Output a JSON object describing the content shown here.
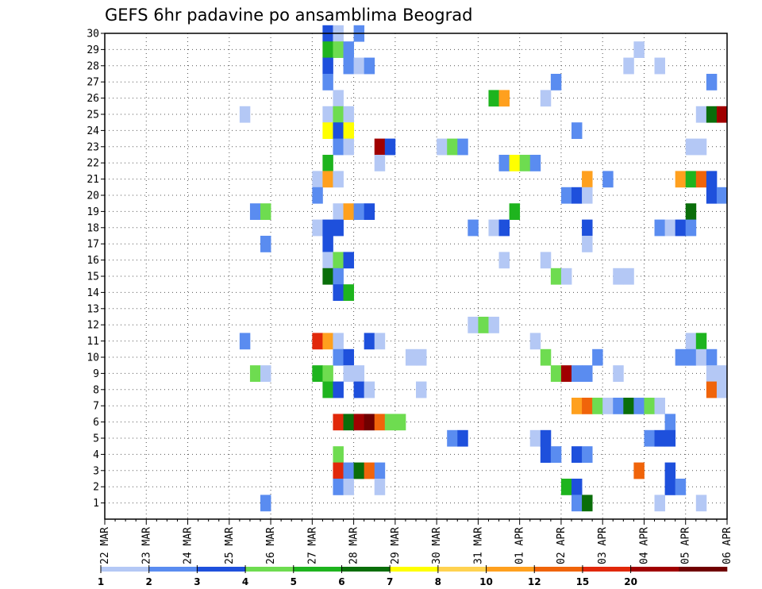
{
  "chart_data": {
    "type": "heatmap",
    "title": "GEFS 6hr padavine po ansamblima Beograd",
    "x_labels": [
      "22 MAR",
      "23 MAR",
      "24 MAR",
      "25 MAR",
      "26 MAR",
      "27 MAR",
      "28 MAR",
      "29 MAR",
      "30 MAR",
      "31 MAR",
      "01 APR",
      "02 APR",
      "03 APR",
      "04 APR",
      "05 APR",
      "06 APR"
    ],
    "x_range": [
      0,
      60
    ],
    "x_unit": "6-hour steps from 22 MAR 00Z",
    "y_labels": [
      1,
      2,
      3,
      4,
      5,
      6,
      7,
      8,
      9,
      10,
      11,
      12,
      13,
      14,
      15,
      16,
      17,
      18,
      19,
      20,
      21,
      22,
      23,
      24,
      25,
      26,
      27,
      28,
      29,
      30
    ],
    "y_range": [
      0,
      30
    ],
    "grid": true,
    "legend": {
      "placement": "bottom",
      "labels": [
        "1",
        "2",
        "3",
        "4",
        "5",
        "6",
        "7",
        "8",
        "10",
        "12",
        "15",
        "20"
      ],
      "colors": [
        "#b4c8f5",
        "#5a8cf0",
        "#1e50dc",
        "#6edc50",
        "#1eb41e",
        "#0a6e0a",
        "#ffff00",
        "#ffd250",
        "#ffa01e",
        "#f0640a",
        "#e1280a",
        "#a00000",
        "#700000"
      ]
    },
    "cells": [
      {
        "x": 22,
        "y": 30,
        "c": 2
      },
      {
        "x": 23,
        "y": 30,
        "c": 0
      },
      {
        "x": 25,
        "y": 30,
        "c": 1
      },
      {
        "x": 22,
        "y": 29,
        "c": 4
      },
      {
        "x": 23,
        "y": 29,
        "c": 3
      },
      {
        "x": 24,
        "y": 29,
        "c": 1
      },
      {
        "x": 52,
        "y": 29,
        "c": 0
      },
      {
        "x": 22,
        "y": 28,
        "c": 2
      },
      {
        "x": 24,
        "y": 28,
        "c": 1
      },
      {
        "x": 25,
        "y": 28,
        "c": 0
      },
      {
        "x": 26,
        "y": 28,
        "c": 1
      },
      {
        "x": 51,
        "y": 28,
        "c": 0
      },
      {
        "x": 54,
        "y": 28,
        "c": 0
      },
      {
        "x": 22,
        "y": 27,
        "c": 1
      },
      {
        "x": 44,
        "y": 27,
        "c": 1
      },
      {
        "x": 59,
        "y": 27,
        "c": 1
      },
      {
        "x": 23,
        "y": 26,
        "c": 0
      },
      {
        "x": 38,
        "y": 26,
        "c": 4
      },
      {
        "x": 39,
        "y": 26,
        "c": 8
      },
      {
        "x": 43,
        "y": 26,
        "c": 0
      },
      {
        "x": 14,
        "y": 25,
        "c": 0
      },
      {
        "x": 22,
        "y": 25,
        "c": 0
      },
      {
        "x": 23,
        "y": 25,
        "c": 3
      },
      {
        "x": 24,
        "y": 25,
        "c": 0
      },
      {
        "x": 58,
        "y": 25,
        "c": 0
      },
      {
        "x": 59,
        "y": 25,
        "c": 5
      },
      {
        "x": 60,
        "y": 25,
        "c": 11
      },
      {
        "x": 22,
        "y": 24,
        "c": 6
      },
      {
        "x": 23,
        "y": 24,
        "c": 2
      },
      {
        "x": 24,
        "y": 24,
        "c": 6
      },
      {
        "x": 46,
        "y": 24,
        "c": 1
      },
      {
        "x": 23,
        "y": 23,
        "c": 1
      },
      {
        "x": 24,
        "y": 23,
        "c": 0
      },
      {
        "x": 27,
        "y": 23,
        "c": 11
      },
      {
        "x": 28,
        "y": 23,
        "c": 2
      },
      {
        "x": 33,
        "y": 23,
        "c": 0
      },
      {
        "x": 34,
        "y": 23,
        "c": 3
      },
      {
        "x": 35,
        "y": 23,
        "c": 1
      },
      {
        "x": 57,
        "y": 23,
        "c": 0
      },
      {
        "x": 58,
        "y": 23,
        "c": 0
      },
      {
        "x": 22,
        "y": 22,
        "c": 4
      },
      {
        "x": 27,
        "y": 22,
        "c": 0
      },
      {
        "x": 39,
        "y": 22,
        "c": 1
      },
      {
        "x": 40,
        "y": 22,
        "c": 6
      },
      {
        "x": 41,
        "y": 22,
        "c": 3
      },
      {
        "x": 42,
        "y": 22,
        "c": 1
      },
      {
        "x": 21,
        "y": 21,
        "c": 0
      },
      {
        "x": 22,
        "y": 21,
        "c": 8
      },
      {
        "x": 23,
        "y": 21,
        "c": 0
      },
      {
        "x": 47,
        "y": 21,
        "c": 8
      },
      {
        "x": 49,
        "y": 21,
        "c": 1
      },
      {
        "x": 56,
        "y": 21,
        "c": 8
      },
      {
        "x": 57,
        "y": 21,
        "c": 4
      },
      {
        "x": 58,
        "y": 21,
        "c": 9
      },
      {
        "x": 59,
        "y": 21,
        "c": 2
      },
      {
        "x": 21,
        "y": 20,
        "c": 1
      },
      {
        "x": 45,
        "y": 20,
        "c": 1
      },
      {
        "x": 46,
        "y": 20,
        "c": 2
      },
      {
        "x": 47,
        "y": 20,
        "c": 0
      },
      {
        "x": 59,
        "y": 20,
        "c": 2
      },
      {
        "x": 60,
        "y": 20,
        "c": 1
      },
      {
        "x": 15,
        "y": 19,
        "c": 1
      },
      {
        "x": 16,
        "y": 19,
        "c": 3
      },
      {
        "x": 23,
        "y": 19,
        "c": 0
      },
      {
        "x": 24,
        "y": 19,
        "c": 8
      },
      {
        "x": 25,
        "y": 19,
        "c": 1
      },
      {
        "x": 26,
        "y": 19,
        "c": 2
      },
      {
        "x": 40,
        "y": 19,
        "c": 4
      },
      {
        "x": 57,
        "y": 19,
        "c": 5
      },
      {
        "x": 21,
        "y": 18,
        "c": 0
      },
      {
        "x": 22,
        "y": 18,
        "c": 2
      },
      {
        "x": 23,
        "y": 18,
        "c": 2
      },
      {
        "x": 36,
        "y": 18,
        "c": 1
      },
      {
        "x": 38,
        "y": 18,
        "c": 0
      },
      {
        "x": 39,
        "y": 18,
        "c": 2
      },
      {
        "x": 47,
        "y": 18,
        "c": 2
      },
      {
        "x": 54,
        "y": 18,
        "c": 1
      },
      {
        "x": 55,
        "y": 18,
        "c": 0
      },
      {
        "x": 56,
        "y": 18,
        "c": 2
      },
      {
        "x": 57,
        "y": 18,
        "c": 1
      },
      {
        "x": 22,
        "y": 17,
        "c": 2
      },
      {
        "x": 16,
        "y": 17,
        "c": 1
      },
      {
        "x": 47,
        "y": 17,
        "c": 0
      },
      {
        "x": 22,
        "y": 16,
        "c": 0
      },
      {
        "x": 23,
        "y": 16,
        "c": 3
      },
      {
        "x": 24,
        "y": 16,
        "c": 2
      },
      {
        "x": 39,
        "y": 16,
        "c": 0
      },
      {
        "x": 43,
        "y": 16,
        "c": 0
      },
      {
        "x": 22,
        "y": 15,
        "c": 5
      },
      {
        "x": 23,
        "y": 15,
        "c": 1
      },
      {
        "x": 44,
        "y": 15,
        "c": 3
      },
      {
        "x": 45,
        "y": 15,
        "c": 0
      },
      {
        "x": 50,
        "y": 15,
        "c": 0
      },
      {
        "x": 51,
        "y": 15,
        "c": 0
      },
      {
        "x": 23,
        "y": 14,
        "c": 2
      },
      {
        "x": 24,
        "y": 14,
        "c": 4
      },
      {
        "x": 36,
        "y": 12,
        "c": 0
      },
      {
        "x": 37,
        "y": 12,
        "c": 3
      },
      {
        "x": 38,
        "y": 12,
        "c": 0
      },
      {
        "x": 14,
        "y": 11,
        "c": 1
      },
      {
        "x": 21,
        "y": 11,
        "c": 10
      },
      {
        "x": 22,
        "y": 11,
        "c": 8
      },
      {
        "x": 23,
        "y": 11,
        "c": 0
      },
      {
        "x": 26,
        "y": 11,
        "c": 2
      },
      {
        "x": 27,
        "y": 11,
        "c": 0
      },
      {
        "x": 42,
        "y": 11,
        "c": 0
      },
      {
        "x": 57,
        "y": 11,
        "c": 0
      },
      {
        "x": 58,
        "y": 11,
        "c": 4
      },
      {
        "x": 23,
        "y": 10,
        "c": 1
      },
      {
        "x": 24,
        "y": 10,
        "c": 2
      },
      {
        "x": 30,
        "y": 10,
        "c": 0
      },
      {
        "x": 31,
        "y": 10,
        "c": 0
      },
      {
        "x": 43,
        "y": 10,
        "c": 3
      },
      {
        "x": 48,
        "y": 10,
        "c": 1
      },
      {
        "x": 56,
        "y": 10,
        "c": 1
      },
      {
        "x": 57,
        "y": 10,
        "c": 1
      },
      {
        "x": 58,
        "y": 10,
        "c": 0
      },
      {
        "x": 59,
        "y": 10,
        "c": 1
      },
      {
        "x": 15,
        "y": 9,
        "c": 3
      },
      {
        "x": 16,
        "y": 9,
        "c": 0
      },
      {
        "x": 21,
        "y": 9,
        "c": 4
      },
      {
        "x": 22,
        "y": 9,
        "c": 3
      },
      {
        "x": 24,
        "y": 9,
        "c": 0
      },
      {
        "x": 25,
        "y": 9,
        "c": 0
      },
      {
        "x": 44,
        "y": 9,
        "c": 3
      },
      {
        "x": 45,
        "y": 9,
        "c": 11
      },
      {
        "x": 46,
        "y": 9,
        "c": 1
      },
      {
        "x": 47,
        "y": 9,
        "c": 1
      },
      {
        "x": 50,
        "y": 9,
        "c": 0
      },
      {
        "x": 59,
        "y": 9,
        "c": 0
      },
      {
        "x": 60,
        "y": 9,
        "c": 0
      },
      {
        "x": 22,
        "y": 8,
        "c": 4
      },
      {
        "x": 23,
        "y": 8,
        "c": 2
      },
      {
        "x": 25,
        "y": 8,
        "c": 2
      },
      {
        "x": 26,
        "y": 8,
        "c": 0
      },
      {
        "x": 31,
        "y": 8,
        "c": 0
      },
      {
        "x": 59,
        "y": 8,
        "c": 9
      },
      {
        "x": 60,
        "y": 8,
        "c": 0
      },
      {
        "x": 46,
        "y": 7,
        "c": 8
      },
      {
        "x": 47,
        "y": 7,
        "c": 9
      },
      {
        "x": 48,
        "y": 7,
        "c": 3
      },
      {
        "x": 49,
        "y": 7,
        "c": 0
      },
      {
        "x": 50,
        "y": 7,
        "c": 1
      },
      {
        "x": 51,
        "y": 7,
        "c": 5
      },
      {
        "x": 52,
        "y": 7,
        "c": 1
      },
      {
        "x": 53,
        "y": 7,
        "c": 3
      },
      {
        "x": 54,
        "y": 7,
        "c": 0
      },
      {
        "x": 23,
        "y": 6,
        "c": 10
      },
      {
        "x": 24,
        "y": 6,
        "c": 5
      },
      {
        "x": 25,
        "y": 6,
        "c": 11
      },
      {
        "x": 26,
        "y": 6,
        "c": 12
      },
      {
        "x": 27,
        "y": 6,
        "c": 9
      },
      {
        "x": 28,
        "y": 6,
        "c": 3
      },
      {
        "x": 29,
        "y": 6,
        "c": 3
      },
      {
        "x": 55,
        "y": 6,
        "c": 1
      },
      {
        "x": 34,
        "y": 5,
        "c": 1
      },
      {
        "x": 35,
        "y": 5,
        "c": 2
      },
      {
        "x": 42,
        "y": 5,
        "c": 0
      },
      {
        "x": 43,
        "y": 5,
        "c": 2
      },
      {
        "x": 53,
        "y": 5,
        "c": 1
      },
      {
        "x": 54,
        "y": 5,
        "c": 2
      },
      {
        "x": 55,
        "y": 5,
        "c": 2
      },
      {
        "x": 23,
        "y": 4,
        "c": 3
      },
      {
        "x": 43,
        "y": 4,
        "c": 2
      },
      {
        "x": 44,
        "y": 4,
        "c": 1
      },
      {
        "x": 46,
        "y": 4,
        "c": 2
      },
      {
        "x": 47,
        "y": 4,
        "c": 1
      },
      {
        "x": 23,
        "y": 3,
        "c": 10
      },
      {
        "x": 24,
        "y": 3,
        "c": 1
      },
      {
        "x": 25,
        "y": 3,
        "c": 5
      },
      {
        "x": 26,
        "y": 3,
        "c": 9
      },
      {
        "x": 27,
        "y": 3,
        "c": 1
      },
      {
        "x": 52,
        "y": 3,
        "c": 9
      },
      {
        "x": 55,
        "y": 3,
        "c": 2
      },
      {
        "x": 23,
        "y": 2,
        "c": 1
      },
      {
        "x": 24,
        "y": 2,
        "c": 0
      },
      {
        "x": 27,
        "y": 2,
        "c": 0
      },
      {
        "x": 45,
        "y": 2,
        "c": 4
      },
      {
        "x": 46,
        "y": 2,
        "c": 2
      },
      {
        "x": 55,
        "y": 2,
        "c": 2
      },
      {
        "x": 56,
        "y": 2,
        "c": 1
      },
      {
        "x": 16,
        "y": 1,
        "c": 1
      },
      {
        "x": 46,
        "y": 1,
        "c": 1
      },
      {
        "x": 47,
        "y": 1,
        "c": 5
      },
      {
        "x": 54,
        "y": 1,
        "c": 0
      },
      {
        "x": 58,
        "y": 1,
        "c": 0
      }
    ]
  }
}
